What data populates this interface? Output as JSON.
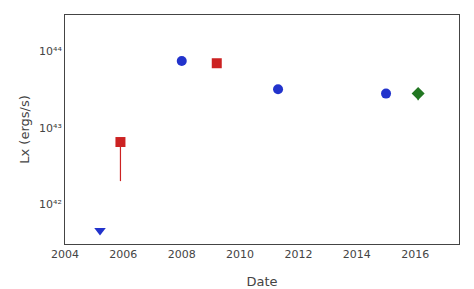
{
  "chart_data": {
    "type": "scatter",
    "xlabel": "Date",
    "ylabel": "Lx (ergs/s)",
    "log": "y",
    "grid": false,
    "xlim": [
      2004,
      2017.5
    ],
    "ylim": [
      3e+41,
      3e+44
    ],
    "xticks": [
      2004,
      2006,
      2008,
      2010,
      2012,
      2014,
      2016
    ],
    "yticks": [
      {
        "value": 1e+42,
        "label": "10⁴²"
      },
      {
        "value": 1e+43,
        "label": "10⁴³"
      },
      {
        "value": 1e+44,
        "label": "10⁴⁴"
      }
    ],
    "series": [
      {
        "color": "#2233cc",
        "marker": "circle",
        "x": [
          2008.0,
          2011.3,
          2015.0
        ],
        "values": [
          7.5e+43,
          3.2e+43,
          2.8e+43
        ]
      },
      {
        "color": "#2233cc",
        "marker": "triangle-down",
        "x": [
          2005.2
        ],
        "values": [
          4.5e+41
        ]
      },
      {
        "color": "#cc2222",
        "marker": "square",
        "x": [
          2005.9,
          2009.2
        ],
        "values": [
          6.5e+42,
          7e+43
        ],
        "error_low": [
          4.5e+42,
          0.0
        ],
        "error_high": [
          0.0,
          0.0
        ]
      },
      {
        "color": "#227722",
        "marker": "diamond",
        "x": [
          2016.1
        ],
        "values": [
          2.8e+43
        ],
        "error_low": [
          5e+42
        ],
        "error_high": [
          5e+42
        ]
      }
    ]
  }
}
